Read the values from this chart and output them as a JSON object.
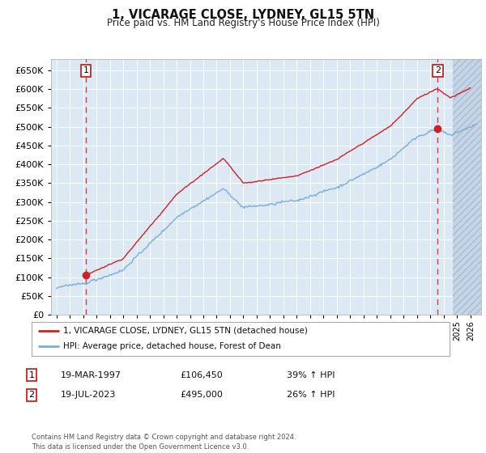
{
  "title": "1, VICARAGE CLOSE, LYDNEY, GL15 5TN",
  "subtitle": "Price paid vs. HM Land Registry's House Price Index (HPI)",
  "ylim": [
    0,
    680000
  ],
  "ytick_values": [
    0,
    50000,
    100000,
    150000,
    200000,
    250000,
    300000,
    350000,
    400000,
    450000,
    500000,
    550000,
    600000,
    650000
  ],
  "xlim_start": 1994.6,
  "xlim_end": 2026.8,
  "transaction1_date": 1997.21,
  "transaction1_price": 106450,
  "transaction2_date": 2023.54,
  "transaction2_price": 495000,
  "legend_line1": "1, VICARAGE CLOSE, LYDNEY, GL15 5TN (detached house)",
  "legend_line2": "HPI: Average price, detached house, Forest of Dean",
  "table_row1_label": "1",
  "table_row1_date": "19-MAR-1997",
  "table_row1_price": "£106,450",
  "table_row1_hpi": "39% ↑ HPI",
  "table_row2_label": "2",
  "table_row2_date": "19-JUL-2023",
  "table_row2_price": "£495,000",
  "table_row2_hpi": "26% ↑ HPI",
  "footer": "Contains HM Land Registry data © Crown copyright and database right 2024.\nThis data is licensed under the Open Government Licence v3.0.",
  "hpi_line_color": "#7aaed6",
  "price_line_color": "#cc2222",
  "bg_color": "#dde8f5",
  "dashed_line_color": "#cc2222",
  "marker_color": "#cc2222",
  "box_edge_color": "#cc2222",
  "grid_color": "#ffffff",
  "hatch_color": "#c5d5e8"
}
